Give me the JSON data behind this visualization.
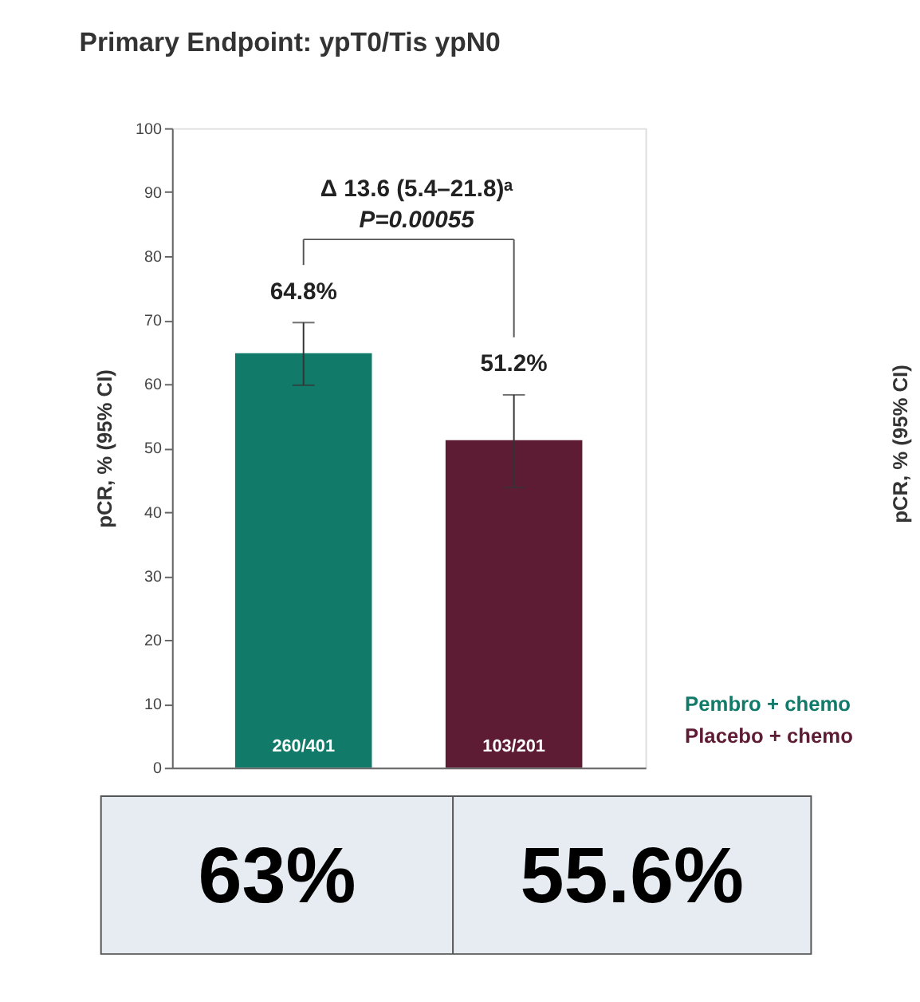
{
  "chart_data": {
    "type": "bar",
    "title": "Primary Endpoint: ypT0/Tis ypN0",
    "ylabel": "pCR, % (95% CI)",
    "categories": [
      "260/401",
      "103/201"
    ],
    "series": [
      {
        "name": "Pembro + chemo",
        "color": "#127a68",
        "values": [
          64.8,
          null
        ],
        "errors": [
          [
            59.8,
            69.6
          ],
          null
        ],
        "value_labels": [
          "64.8%",
          null
        ]
      },
      {
        "name": "Placebo + chemo",
        "color": "#5e1c34",
        "values": [
          null,
          51.2
        ],
        "errors": [
          null,
          [
            43.8,
            58.3
          ]
        ],
        "value_labels": [
          null,
          "51.2%"
        ]
      }
    ],
    "ylim": [
      0,
      100
    ],
    "yticks": [
      0,
      10,
      20,
      30,
      40,
      50,
      60,
      70,
      80,
      90,
      100
    ],
    "grid": false,
    "legend": "bottom right",
    "annotations": [
      "Δ 13.6 (5.4–21.8)ᵃ",
      "P=0.00055",
      "pCR, % (95% CI)",
      "63%",
      "55.6%"
    ]
  }
}
